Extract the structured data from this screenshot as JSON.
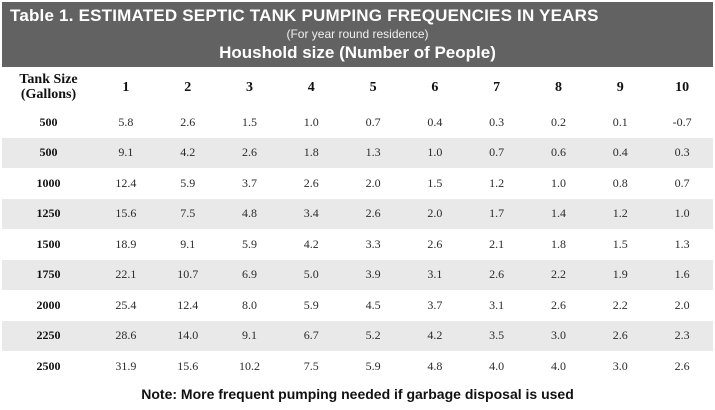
{
  "header": {
    "title": "Table 1. ESTIMATED SEPTIC TANK PUMPING FREQUENCIES IN YEARS",
    "subtitle": "(For year round residence)",
    "group_title": "Houshold size (Number of People)",
    "background_color": "#626262"
  },
  "table": {
    "corner_header": [
      "Tank Size",
      "(Gallons)"
    ],
    "columns": [
      "1",
      "2",
      "3",
      "4",
      "5",
      "6",
      "7",
      "8",
      "9",
      "10"
    ],
    "rows": [
      {
        "size": "500",
        "values": [
          "5.8",
          "2.6",
          "1.5",
          "1.0",
          "0.7",
          "0.4",
          "0.3",
          "0.2",
          "0.1",
          "-0.7"
        ]
      },
      {
        "size": "500",
        "values": [
          "9.1",
          "4.2",
          "2.6",
          "1.8",
          "1.3",
          "1.0",
          "0.7",
          "0.6",
          "0.4",
          "0.3"
        ]
      },
      {
        "size": "1000",
        "values": [
          "12.4",
          "5.9",
          "3.7",
          "2.6",
          "2.0",
          "1.5",
          "1.2",
          "1.0",
          "0.8",
          "0.7"
        ]
      },
      {
        "size": "1250",
        "values": [
          "15.6",
          "7.5",
          "4.8",
          "3.4",
          "2.6",
          "2.0",
          "1.7",
          "1.4",
          "1.2",
          "1.0"
        ]
      },
      {
        "size": "1500",
        "values": [
          "18.9",
          "9.1",
          "5.9",
          "4.2",
          "3.3",
          "2.6",
          "2.1",
          "1.8",
          "1.5",
          "1.3"
        ]
      },
      {
        "size": "1750",
        "values": [
          "22.1",
          "10.7",
          "6.9",
          "5.0",
          "3.9",
          "3.1",
          "2.6",
          "2.2",
          "1.9",
          "1.6"
        ]
      },
      {
        "size": "2000",
        "values": [
          "25.4",
          "12.4",
          "8.0",
          "5.9",
          "4.5",
          "3.7",
          "3.1",
          "2.6",
          "2.2",
          "2.0"
        ]
      },
      {
        "size": "2250",
        "values": [
          "28.6",
          "14.0",
          "9.1",
          "6.7",
          "5.2",
          "4.2",
          "3.5",
          "3.0",
          "2.6",
          "2.3"
        ]
      },
      {
        "size": "2500",
        "values": [
          "31.9",
          "15.6",
          "10.2",
          "7.5",
          "5.9",
          "4.8",
          "4.0",
          "4.0",
          "3.0",
          "2.6"
        ]
      }
    ],
    "shaded_row_color": "#e9e9e9"
  },
  "footnote": "Note: More frequent pumping needed if garbage disposal is used"
}
